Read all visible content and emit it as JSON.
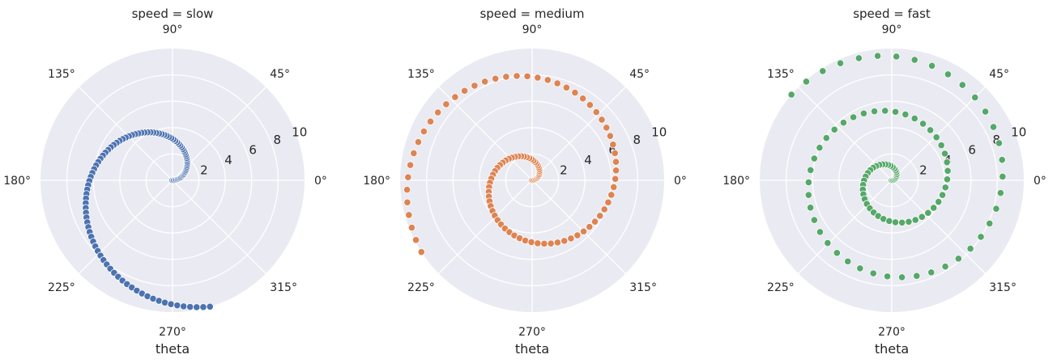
{
  "chart_data": [
    {
      "type": "scatter",
      "projection": "polar",
      "title": "speed = slow",
      "xlabel": "theta",
      "rlim": [
        0,
        10
      ],
      "r_ticks": [
        "2",
        "4",
        "6",
        "8",
        "10"
      ],
      "theta_ticks": [
        "0°",
        "45°",
        "90°",
        "135°",
        "180°",
        "225°",
        "270°",
        "315°"
      ],
      "grid": true,
      "color": "#4c72b0",
      "points": {
        "r": [
          0,
          0.1,
          0.2,
          0.3,
          0.4,
          0.5,
          0.6,
          0.7,
          0.8,
          0.9,
          1.0,
          1.1,
          1.2,
          1.3,
          1.4,
          1.5,
          1.6,
          1.7,
          1.8,
          1.9,
          2.0,
          2.1,
          2.2,
          2.3,
          2.4,
          2.5,
          2.6,
          2.7,
          2.8,
          2.9,
          3.0,
          3.1,
          3.2,
          3.3,
          3.4,
          3.5,
          3.6,
          3.7,
          3.8,
          3.9,
          4.0,
          4.1,
          4.2,
          4.3,
          4.4,
          4.5,
          4.6,
          4.7,
          4.8,
          4.9,
          5.0,
          5.1,
          5.2,
          5.3,
          5.4,
          5.5,
          5.6,
          5.7,
          5.8,
          5.9,
          6.0,
          6.1,
          6.2,
          6.3,
          6.4,
          6.5,
          6.6,
          6.7,
          6.8,
          6.9,
          7.0,
          7.1,
          7.2,
          7.3,
          7.4,
          7.5,
          7.6,
          7.7,
          7.8,
          7.9,
          8.0,
          8.1,
          8.2,
          8.3,
          8.4,
          8.5,
          8.6,
          8.7,
          8.8,
          8.9,
          9.0,
          9.1,
          9.2,
          9.3,
          9.4,
          9.5,
          9.6,
          9.7,
          9.8,
          9.9,
          10.0
        ],
        "theta_per_r_rad": 0.5
      }
    },
    {
      "type": "scatter",
      "projection": "polar",
      "title": "speed = medium",
      "xlabel": "theta",
      "rlim": [
        0,
        10
      ],
      "r_ticks": [
        "2",
        "4",
        "6",
        "8",
        "10"
      ],
      "theta_ticks": [
        "0°",
        "45°",
        "90°",
        "135°",
        "180°",
        "225°",
        "270°",
        "315°"
      ],
      "grid": true,
      "color": "#dd8452",
      "points": {
        "r": [
          0,
          0.1,
          0.2,
          0.3,
          0.4,
          0.5,
          0.6,
          0.7,
          0.8,
          0.9,
          1.0,
          1.1,
          1.2,
          1.3,
          1.4,
          1.5,
          1.6,
          1.7,
          1.8,
          1.9,
          2.0,
          2.1,
          2.2,
          2.3,
          2.4,
          2.5,
          2.6,
          2.7,
          2.8,
          2.9,
          3.0,
          3.1,
          3.2,
          3.3,
          3.4,
          3.5,
          3.6,
          3.7,
          3.8,
          3.9,
          4.0,
          4.1,
          4.2,
          4.3,
          4.4,
          4.5,
          4.6,
          4.7,
          4.8,
          4.9,
          5.0,
          5.1,
          5.2,
          5.3,
          5.4,
          5.5,
          5.6,
          5.7,
          5.8,
          5.9,
          6.0,
          6.1,
          6.2,
          6.3,
          6.4,
          6.5,
          6.6,
          6.7,
          6.8,
          6.9,
          7.0,
          7.1,
          7.2,
          7.3,
          7.4,
          7.5,
          7.6,
          7.7,
          7.8,
          7.9,
          8.0,
          8.1,
          8.2,
          8.3,
          8.4,
          8.5,
          8.6,
          8.7,
          8.8,
          8.9,
          9.0,
          9.1,
          9.2,
          9.3,
          9.4,
          9.5,
          9.6,
          9.7,
          9.8,
          9.9,
          10.0
        ],
        "theta_per_r_rad": 1.0
      }
    },
    {
      "type": "scatter",
      "projection": "polar",
      "title": "speed = fast",
      "xlabel": "theta",
      "rlim": [
        0,
        10
      ],
      "r_ticks": [
        "2",
        "4",
        "6",
        "8",
        "10"
      ],
      "theta_ticks": [
        "0°",
        "45°",
        "90°",
        "135°",
        "180°",
        "225°",
        "270°",
        "315°"
      ],
      "grid": true,
      "color": "#55a868",
      "points": {
        "r": [
          0,
          0.1,
          0.2,
          0.3,
          0.4,
          0.5,
          0.6,
          0.7,
          0.8,
          0.9,
          1.0,
          1.1,
          1.2,
          1.3,
          1.4,
          1.5,
          1.6,
          1.7,
          1.8,
          1.9,
          2.0,
          2.1,
          2.2,
          2.3,
          2.4,
          2.5,
          2.6,
          2.7,
          2.8,
          2.9,
          3.0,
          3.1,
          3.2,
          3.3,
          3.4,
          3.5,
          3.6,
          3.7,
          3.8,
          3.9,
          4.0,
          4.1,
          4.2,
          4.3,
          4.4,
          4.5,
          4.6,
          4.7,
          4.8,
          4.9,
          5.0,
          5.1,
          5.2,
          5.3,
          5.4,
          5.5,
          5.6,
          5.7,
          5.8,
          5.9,
          6.0,
          6.1,
          6.2,
          6.3,
          6.4,
          6.5,
          6.6,
          6.7,
          6.8,
          6.9,
          7.0,
          7.1,
          7.2,
          7.3,
          7.4,
          7.5,
          7.6,
          7.7,
          7.8,
          7.9,
          8.0,
          8.1,
          8.2,
          8.3,
          8.4,
          8.5,
          8.6,
          8.7,
          8.8,
          8.9,
          9.0,
          9.1,
          9.2,
          9.3,
          9.4,
          9.5,
          9.6,
          9.7,
          9.8,
          9.9,
          10.0
        ],
        "theta_per_r_rad": 1.5
      }
    }
  ]
}
